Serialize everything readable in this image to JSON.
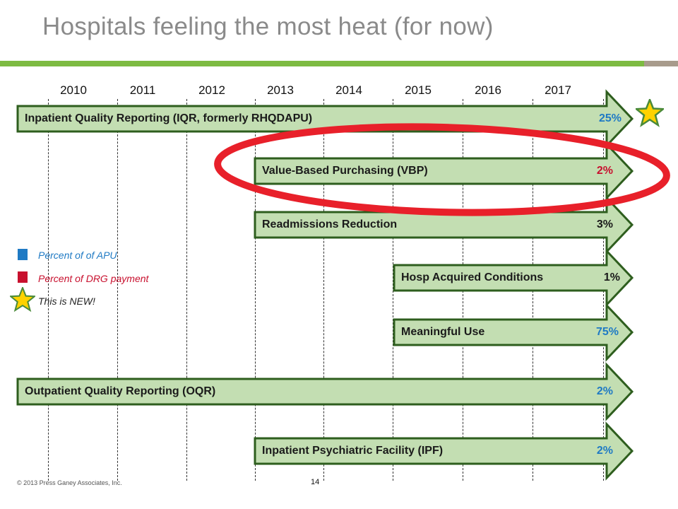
{
  "title": "Hospitals feeling the most heat (for now)",
  "years": [
    "2010",
    "2011",
    "2012",
    "2013",
    "2014",
    "2015",
    "2016",
    "2017"
  ],
  "colors": {
    "apu_blue": "#1f7ac4",
    "drg_red": "#c8102e",
    "arrow_fill": "#c3deb2",
    "arrow_stroke": "#2e5e1e",
    "title_rule": "#7dbb42",
    "highlight_ellipse": "#e8202a"
  },
  "programs": [
    {
      "label": "Inpatient Quality Reporting (IQR, formerly RHQDAPU)",
      "percent": "25%",
      "type": "apu",
      "is_new": true
    },
    {
      "label": "Value-Based Purchasing (VBP)",
      "percent": "2%",
      "type": "drg",
      "highlighted": true
    },
    {
      "label": "Readmissions Reduction",
      "percent": "3%",
      "type": "drg"
    },
    {
      "label": "Hosp Acquired Conditions",
      "percent": "1%",
      "type": "drg"
    },
    {
      "label": "Meaningful Use",
      "percent": "75%",
      "type": "apu"
    },
    {
      "label": "Outpatient Quality Reporting (OQR)",
      "percent": "2%",
      "type": "apu"
    },
    {
      "label": "Inpatient Psychiatric Facility (IPF)",
      "percent": "2%",
      "type": "apu"
    }
  ],
  "legend": {
    "apu": "Percent of of  APU",
    "drg": "Percent of DRG payment",
    "new": "This is NEW!"
  },
  "footer": "© 2013 Press Ganey Associates, Inc.",
  "page_number": "14"
}
